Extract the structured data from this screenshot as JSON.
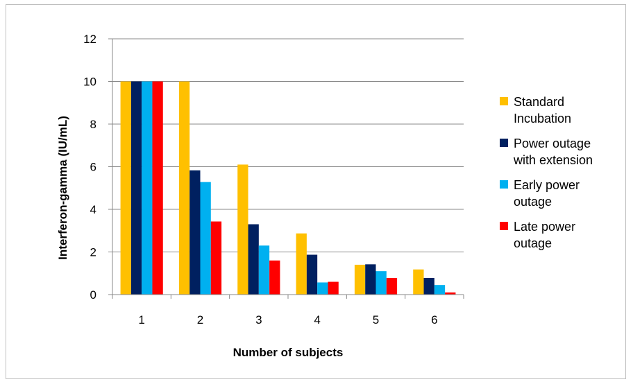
{
  "chart_data": {
    "type": "bar",
    "title": "",
    "xlabel": "Number of subjects",
    "ylabel": "Interferon-gamma (IU/mL)",
    "ylim": [
      0,
      12
    ],
    "yticks": [
      0,
      2,
      4,
      6,
      8,
      10,
      12
    ],
    "grid": true,
    "legend_position": "right",
    "categories": [
      "1",
      "2",
      "3",
      "4",
      "5",
      "6"
    ],
    "series": [
      {
        "name": "Standard Incubation",
        "legend_lines": [
          "Standard",
          "Incubation"
        ],
        "color": "#FFC000",
        "values": [
          10,
          10,
          6.1,
          2.87,
          1.4,
          1.18
        ]
      },
      {
        "name": "Power outage with extension",
        "legend_lines": [
          "Power outage",
          "with extension"
        ],
        "color": "#002060",
        "values": [
          10,
          5.83,
          3.3,
          1.87,
          1.42,
          0.78
        ]
      },
      {
        "name": "Early power outage",
        "legend_lines": [
          "Early power",
          "outage"
        ],
        "color": "#00B0F0",
        "values": [
          10,
          5.28,
          2.3,
          0.57,
          1.1,
          0.45
        ]
      },
      {
        "name": "Late power outage",
        "legend_lines": [
          "Late power",
          "outage"
        ],
        "color": "#FF0000",
        "values": [
          10,
          3.43,
          1.6,
          0.6,
          0.78,
          0.1
        ]
      }
    ]
  }
}
